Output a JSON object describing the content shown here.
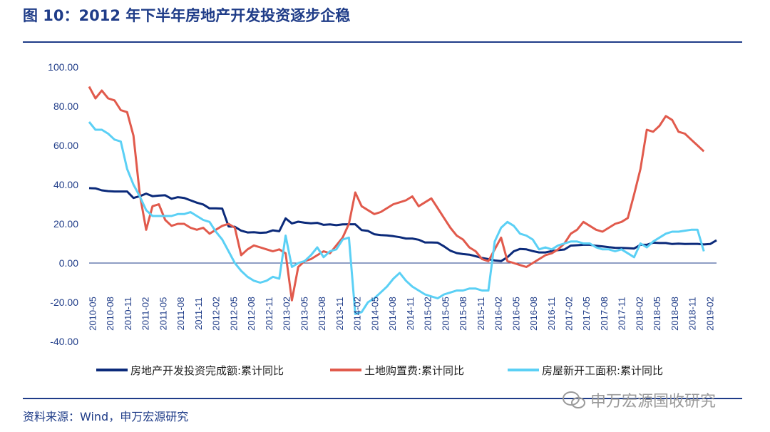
{
  "title": "图 10：2012 年下半年房地产开发投资逐步企稳",
  "source": "资料来源：Wind，申万宏源研究",
  "watermark": "申万宏源国收研究",
  "chart_data": {
    "type": "line",
    "ylim": [
      -40,
      100
    ],
    "y_ticks": [
      "100.00",
      "80.00",
      "60.00",
      "40.00",
      "20.00",
      "0.00",
      "-20.00",
      "-40.00"
    ],
    "x_tick_labels": [
      "2010-05",
      "2010-08",
      "2010-11",
      "2011-02",
      "2011-05",
      "2011-08",
      "2011-11",
      "2012-02",
      "2012-05",
      "2012-08",
      "2012-11",
      "2013-02",
      "2013-05",
      "2013-08",
      "2013-11",
      "2014-02",
      "2014-05",
      "2014-08",
      "2014-11",
      "2015-02",
      "2015-05",
      "2015-08",
      "2015-11",
      "2016-02",
      "2016-05",
      "2016-08",
      "2016-11",
      "2017-02",
      "2017-05",
      "2017-08",
      "2017-11",
      "2018-02",
      "2018-05",
      "2018-08",
      "2018-11",
      "2019-02"
    ],
    "legend_position": "bottom",
    "grid": false,
    "series": [
      {
        "name": "房地产开发投资完成额:累计同比",
        "color": "#0b2a7a",
        "values": [
          38.2,
          38.1,
          37.1,
          36.7,
          36.5,
          36.5,
          36.5,
          33.2,
          34.1,
          35.4,
          34.1,
          34.4,
          34.6,
          32.8,
          33.6,
          33.2,
          32.0,
          30.8,
          29.9,
          27.9,
          27.9,
          27.8,
          18.7,
          18.5,
          16.5,
          15.6,
          15.7,
          15.4,
          15.6,
          16.7,
          16.2,
          22.8,
          20.2,
          21.1,
          20.6,
          20.3,
          20.5,
          19.5,
          19.7,
          19.3,
          19.7,
          19.8,
          19.8,
          16.8,
          16.4,
          14.7,
          14.3,
          14.1,
          13.7,
          13.2,
          12.5,
          12.5,
          11.9,
          10.5,
          10.5,
          10.4,
          8.5,
          6.3,
          5.1,
          4.6,
          4.3,
          3.5,
          2.6,
          2.0,
          1.3,
          1.0,
          3.0,
          6.0,
          7.2,
          7.0,
          6.1,
          5.4,
          5.4,
          6.1,
          6.6,
          6.9,
          8.9,
          9.1,
          9.3,
          9.3,
          8.8,
          8.5,
          8.1,
          7.8,
          7.7,
          7.6,
          7.4,
          9.3,
          9.3,
          10.4,
          10.2,
          10.2,
          9.7,
          9.9,
          9.7,
          9.8,
          9.8,
          9.5,
          9.7,
          11.6
        ]
      },
      {
        "name": "土地购置费:累计同比",
        "color": "#e15a4c",
        "values": [
          90.0,
          84.0,
          88.0,
          84.0,
          83.0,
          78.0,
          77.0,
          65.0,
          35.0,
          17.0,
          29.0,
          30.0,
          22.0,
          19.0,
          20.0,
          20.0,
          18.0,
          17.0,
          18.0,
          15.0,
          17.0,
          19.0,
          20.0,
          18.0,
          4.0,
          7.0,
          9.0,
          8.0,
          7.0,
          6.0,
          7.0,
          5.0,
          -19.0,
          -2.0,
          1.0,
          2.0,
          4.0,
          6.0,
          5.0,
          9.0,
          13.0,
          20.0,
          36.0,
          29.0,
          27.0,
          25.0,
          26.0,
          28.0,
          30.0,
          31.0,
          32.0,
          34.0,
          29.0,
          31.0,
          33.0,
          28.0,
          23.0,
          18.0,
          14.0,
          12.0,
          8.0,
          6.0,
          2.0,
          1.0,
          7.0,
          13.0,
          1.0,
          0.0,
          -1.0,
          -2.0,
          0.0,
          2.0,
          4.0,
          5.0,
          7.0,
          10.0,
          15.0,
          17.0,
          21.0,
          19.0,
          17.0,
          16.0,
          18.0,
          20.0,
          21.0,
          23.0,
          35.0,
          48.0,
          68.0,
          67.0,
          70.0,
          75.0,
          73.0,
          67.0,
          66.0,
          63.0,
          60.0,
          57.0
        ]
      },
      {
        "name": "房屋新开工面积:累计同比",
        "color": "#5bd0f5",
        "values": [
          72.0,
          68.0,
          68.0,
          66.0,
          63.0,
          62.0,
          48.0,
          40.0,
          34.0,
          27.0,
          24.0,
          24.0,
          24.0,
          24.0,
          25.0,
          25.0,
          26.0,
          24.0,
          22.0,
          21.0,
          16.0,
          12.0,
          6.0,
          0.0,
          -4.0,
          -7.0,
          -9.0,
          -10.0,
          -9.0,
          -7.0,
          -8.0,
          14.0,
          -2.0,
          0.0,
          1.0,
          4.0,
          8.0,
          3.0,
          6.0,
          7.0,
          12.0,
          13.0,
          -26.0,
          -25.0,
          -20.0,
          -18.0,
          -15.0,
          -12.0,
          -8.0,
          -5.0,
          -9.0,
          -12.0,
          -14.0,
          -16.0,
          -17.0,
          -18.0,
          -16.0,
          -15.0,
          -14.0,
          -14.0,
          -13.0,
          -13.0,
          -14.0,
          -14.0,
          11.0,
          18.0,
          21.0,
          19.0,
          15.0,
          14.0,
          12.0,
          7.0,
          8.0,
          7.0,
          9.0,
          10.0,
          11.0,
          11.0,
          10.0,
          10.0,
          8.0,
          7.0,
          7.0,
          6.0,
          7.0,
          5.0,
          3.0,
          10.0,
          8.0,
          11.0,
          13.0,
          15.0,
          16.0,
          16.0,
          16.5,
          17.0,
          17.0,
          6.0
        ]
      }
    ]
  }
}
